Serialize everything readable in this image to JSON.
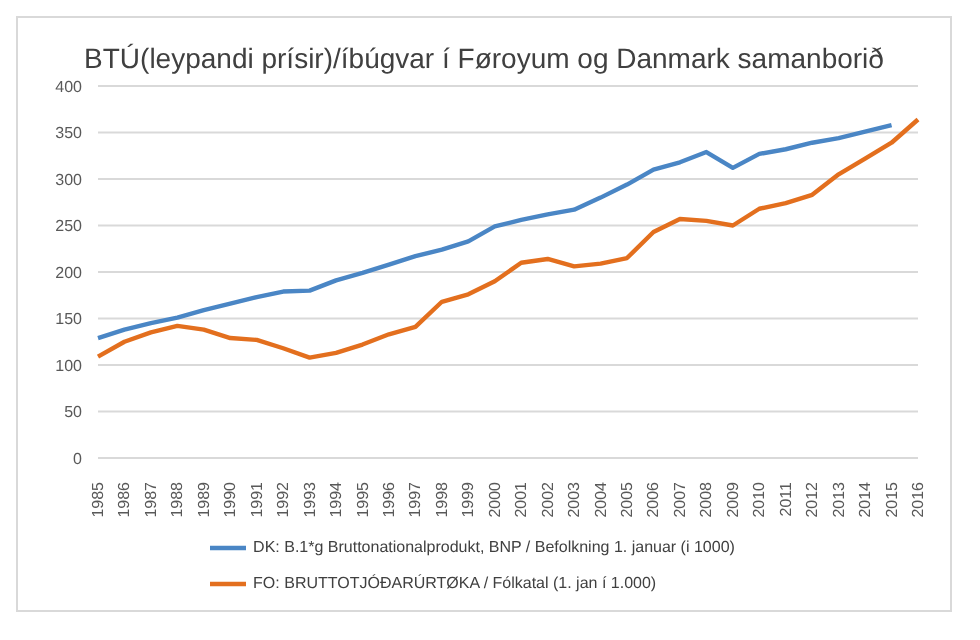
{
  "chart_data": {
    "type": "line",
    "title": "BTÚ(leypandi prísir)/íbúgvar í Føroyum og Danmark samanborið",
    "categories": [
      "1985",
      "1986",
      "1987",
      "1988",
      "1989",
      "1990",
      "1991",
      "1992",
      "1993",
      "1994",
      "1995",
      "1996",
      "1997",
      "1998",
      "1999",
      "2000",
      "2001",
      "2002",
      "2003",
      "2004",
      "2005",
      "2006",
      "2007",
      "2008",
      "2009",
      "2010",
      "2011",
      "2012",
      "2013",
      "2014",
      "2015",
      "2016"
    ],
    "series": [
      {
        "name": "DK: B.1*g Bruttonationalprodukt, BNP / Befolkning 1. januar (i 1000)",
        "color": "#4a86c5",
        "values": [
          129,
          138,
          145,
          151,
          159,
          166,
          173,
          179,
          180,
          191,
          199,
          208,
          217,
          224,
          233,
          249,
          256,
          262,
          267,
          280,
          294,
          310,
          318,
          329,
          312,
          327,
          332,
          339,
          344,
          351,
          358,
          null
        ]
      },
      {
        "name": "FO: BRUTTOTJÓÐARÚRTØKA / Fólkatal (1. jan í 1.000)",
        "color": "#e36f1e",
        "values": [
          109,
          125,
          135,
          142,
          138,
          129,
          127,
          118,
          108,
          113,
          122,
          133,
          141,
          168,
          176,
          190,
          210,
          214,
          206,
          209,
          215,
          243,
          257,
          255,
          250,
          268,
          274,
          283,
          305,
          322,
          339,
          364
        ]
      }
    ],
    "ylim": [
      0,
      400
    ],
    "yticks": [
      0,
      50,
      100,
      150,
      200,
      250,
      300,
      350,
      400
    ],
    "grid": "y",
    "legend": "bottom",
    "marker": "none",
    "line_style": "solid"
  }
}
